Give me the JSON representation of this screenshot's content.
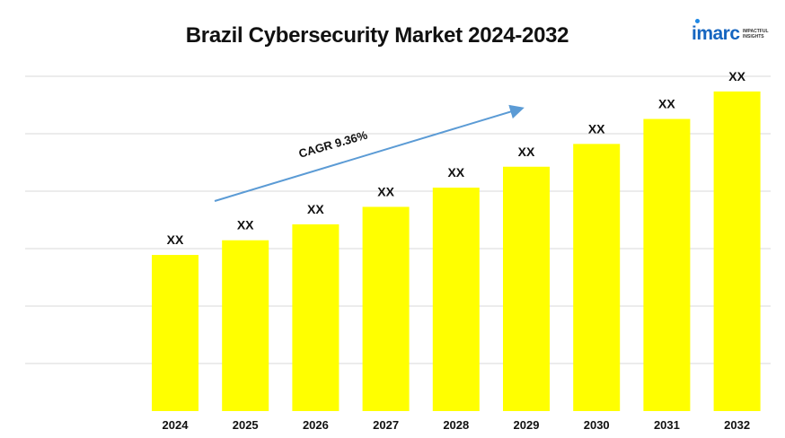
{
  "title": "Brazil Cybersecurity Market 2024-2032",
  "logo": {
    "word": "imarc",
    "tagline": "IMPACTFUL INSIGHTS"
  },
  "colors": {
    "bar": "#ffff00",
    "arrow": "#5b9bd5",
    "grid": "#d9d9d9"
  },
  "chart_data": {
    "type": "bar",
    "title": "Brazil Cybersecurity Market 2024-2032",
    "categories": [
      "2024",
      "2025",
      "2026",
      "2027",
      "2028",
      "2029",
      "2030",
      "2031",
      "2032"
    ],
    "values": [
      100,
      109.4,
      119.6,
      130.8,
      143.1,
      156.5,
      171.1,
      187.1,
      204.7
    ],
    "data_labels": [
      "XX",
      "XX",
      "XX",
      "XX",
      "XX",
      "XX",
      "XX",
      "XX",
      "XX"
    ],
    "annotation": "CAGR 9.36%",
    "cagr_percent": 9.36,
    "ylim": [
      0,
      215
    ],
    "grid": true,
    "legend": "none"
  }
}
